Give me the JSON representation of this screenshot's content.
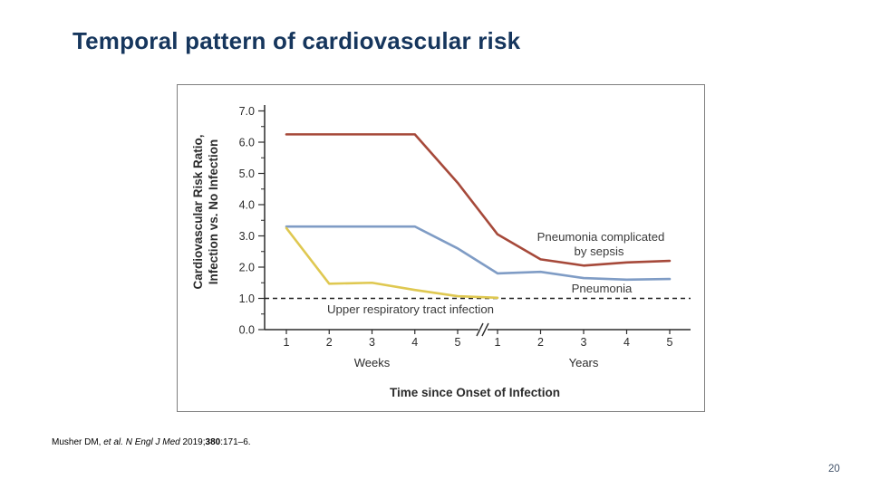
{
  "slide": {
    "title": "Temporal pattern of cardiovascular risk",
    "page_number": "20",
    "citation": {
      "prefix": "Musher DM, ",
      "italic": "et al. N Engl J Med ",
      "year": "2019;",
      "bold": "380",
      "suffix": ":171–6."
    }
  },
  "chart_data": {
    "type": "line",
    "title": "",
    "xlabel": "Time since Onset of Infection",
    "ylabel_lines": [
      "Cardiovascular Risk Ratio,",
      "Infection vs. No Infection"
    ],
    "x_axis": {
      "segments": [
        {
          "label": "Weeks",
          "ticks": [
            "1",
            "2",
            "3",
            "4",
            "5"
          ]
        },
        {
          "label": "Years",
          "ticks": [
            "1",
            "2",
            "3",
            "4",
            "5"
          ]
        }
      ],
      "axis_break": true
    },
    "y_axis": {
      "tick_labels": [
        "0.0",
        "1.0",
        "2.0",
        "3.0",
        "4.0",
        "5.0",
        "6.0",
        "7.0"
      ],
      "range": [
        0,
        7
      ],
      "minor_step": 0.5
    },
    "reference_line": {
      "value": 1.0,
      "style": "dashed",
      "color": "#1f1f1f"
    },
    "x_categories": [
      "Week 1",
      "Week 2",
      "Week 3",
      "Week 4",
      "Week 5",
      "Year 1",
      "Year 2",
      "Year 3",
      "Year 4",
      "Year 5"
    ],
    "grid": false,
    "legend": "inline-labels",
    "series": [
      {
        "name": "Pneumonia complicated by sepsis",
        "label_lines": [
          "Pneumonia complicated",
          "by sepsis"
        ],
        "color": "#A6493A",
        "values": [
          6.25,
          6.25,
          6.25,
          6.25,
          4.7,
          3.05,
          2.25,
          2.05,
          2.15,
          2.2
        ]
      },
      {
        "name": "Pneumonia",
        "label_lines": [
          "Pneumonia"
        ],
        "color": "#7F9CC5",
        "values": [
          3.3,
          3.3,
          3.3,
          3.3,
          2.6,
          1.8,
          1.85,
          1.65,
          1.6,
          1.62
        ]
      },
      {
        "name": "Upper respiratory tract infection",
        "label_lines": [
          "Upper respiratory tract infection"
        ],
        "color": "#DFC851",
        "values": [
          3.25,
          1.47,
          1.5,
          1.27,
          1.07,
          1.02,
          null,
          null,
          null,
          null
        ]
      }
    ]
  }
}
